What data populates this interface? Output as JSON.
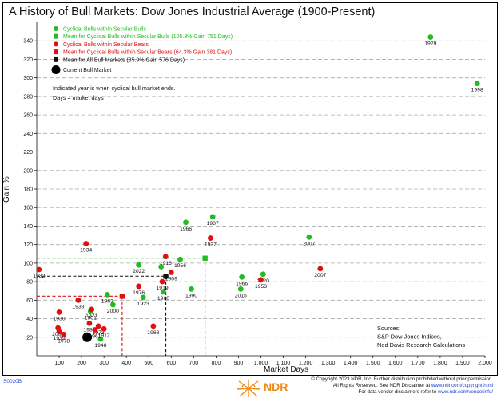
{
  "title": "A History of Bull Markets: Dow Jones Industrial Average (1900-Present)",
  "chart_data": {
    "type": "scatter",
    "xlabel": "Market Days",
    "ylabel": "Gain %",
    "xlim": [
      0,
      2000
    ],
    "ylim": [
      0,
      360
    ],
    "xticks": [
      100,
      200,
      300,
      400,
      500,
      600,
      700,
      800,
      900,
      1000,
      1100,
      1200,
      1300,
      1400,
      1500,
      1600,
      1700,
      1800,
      1900,
      2000
    ],
    "xtick_labels": [
      "100",
      "200",
      "300",
      "400",
      "500",
      "600",
      "700",
      "800",
      "900",
      "1,000",
      "1,100",
      "1,200",
      "1,300",
      "1,400",
      "1,500",
      "1,600",
      "1,700",
      "1,800",
      "1,900",
      "2,000"
    ],
    "yticks": [
      20,
      40,
      60,
      80,
      100,
      120,
      140,
      160,
      180,
      200,
      220,
      240,
      260,
      280,
      300,
      320,
      340
    ],
    "grid": "horizontal dashed",
    "legend_position": "top-left",
    "legend": [
      {
        "label": "Cyclical Bulls within Secular Bulls",
        "marker": "circle",
        "color": "#22bb22"
      },
      {
        "label": "Mean for Cyclical Bulls within Secular Bulls (105.3% Gain 751 Days)",
        "marker": "square",
        "color": "#22bb22"
      },
      {
        "label": "Cyclical Bulls within Secular Bears",
        "marker": "circle",
        "color": "#e01010"
      },
      {
        "label": "Mean for Cyclical Bulls within Secular Bears (64.3% Gain 381 Days)",
        "marker": "square",
        "color": "#e01010"
      },
      {
        "label": "Mean for All Bull Markets (85.9% Gain 576 Days)",
        "marker": "square",
        "color": "#111111"
      },
      {
        "label": "Current Bull Market",
        "marker": "big-circle",
        "color": "#000000"
      }
    ],
    "notes": [
      "Indicated year is when cyclical bull market ends.",
      "Days = market days"
    ],
    "sources": [
      "Sources:",
      "S&P Dow Jones Indices,",
      "Ned Davis Research Calculations"
    ],
    "series": [
      {
        "name": "Cyclical Bulls within Secular Bulls",
        "color": "#22bb22",
        "points": [
          {
            "x": 1757,
            "y": 344,
            "label": "1929"
          },
          {
            "x": 1965,
            "y": 294,
            "label": "1998"
          },
          {
            "x": 785,
            "y": 150,
            "label": "1987"
          },
          {
            "x": 665,
            "y": 144,
            "label": "1966"
          },
          {
            "x": 1215,
            "y": 128,
            "label": "2007"
          },
          {
            "x": 455,
            "y": 98,
            "label": "2022"
          },
          {
            "x": 640,
            "y": 104,
            "label": "1956"
          },
          {
            "x": 555,
            "y": 96,
            "label": ""
          },
          {
            "x": 915,
            "y": 85,
            "label": "1966"
          },
          {
            "x": 1010,
            "y": 88,
            "label": "2020"
          },
          {
            "x": 910,
            "y": 72,
            "label": "2015"
          },
          {
            "x": 690,
            "y": 72,
            "label": "1990"
          },
          {
            "x": 565,
            "y": 69,
            "label": "1960"
          },
          {
            "x": 475,
            "y": 63,
            "label": "1923"
          },
          {
            "x": 315,
            "y": 66,
            "label": "1963"
          },
          {
            "x": 340,
            "y": 55,
            "label": "2000"
          },
          {
            "x": 285,
            "y": 18,
            "label": "1948"
          },
          {
            "x": 240,
            "y": 48,
            "label": "1901"
          }
        ]
      },
      {
        "name": "Cyclical Bulls within Secular Bears",
        "color": "#e01010",
        "points": [
          {
            "x": 775,
            "y": 127,
            "label": "1937"
          },
          {
            "x": 1265,
            "y": 94,
            "label": "2007"
          },
          {
            "x": 1000,
            "y": 82,
            "label": "1953"
          },
          {
            "x": 220,
            "y": 121,
            "label": "1934"
          },
          {
            "x": 10,
            "y": 93,
            "label": "1932"
          },
          {
            "x": 575,
            "y": 107,
            "label": "1916"
          },
          {
            "x": 600,
            "y": 90,
            "label": "1909"
          },
          {
            "x": 560,
            "y": 80,
            "label": "1919"
          },
          {
            "x": 455,
            "y": 75,
            "label": "1976"
          },
          {
            "x": 520,
            "y": 32,
            "label": "1968"
          },
          {
            "x": 185,
            "y": 60,
            "label": "1938"
          },
          {
            "x": 245,
            "y": 50,
            "label": "1971"
          },
          {
            "x": 100,
            "y": 47,
            "label": "1930"
          },
          {
            "x": 235,
            "y": 35,
            "label": "1981"
          },
          {
            "x": 275,
            "y": 32,
            "label": "1973"
          },
          {
            "x": 260,
            "y": 28,
            "label": "1961"
          },
          {
            "x": 300,
            "y": 29,
            "label": "1912"
          },
          {
            "x": 95,
            "y": 30,
            "label": "2002"
          },
          {
            "x": 100,
            "y": 26,
            "label": "1939"
          },
          {
            "x": 120,
            "y": 23,
            "label": "1978"
          }
        ]
      }
    ],
    "means": [
      {
        "name": "Mean for Cyclical Bulls within Secular Bulls",
        "x": 751,
        "y": 105.3,
        "color": "#22bb22"
      },
      {
        "name": "Mean for Cyclical Bulls within Secular Bears",
        "x": 381,
        "y": 64.3,
        "color": "#e01010"
      },
      {
        "name": "Mean for All Bull Markets",
        "x": 576,
        "y": 85.9,
        "color": "#111111"
      }
    ],
    "current": {
      "name": "Current Bull Market",
      "x": 225,
      "y": 20
    }
  },
  "footer": {
    "code": "S0020B",
    "logo_text": "NDR",
    "copyright": [
      "© Copyright 2023 NDR, Inc. Further distribution prohibited without prior permission.",
      "All Rights Reserved. See NDR Disclaimer at",
      "www.ndr.com/copyright.html",
      "For data vendor disclaimers refer to",
      "www.ndr.com/vendorinfo/"
    ]
  }
}
